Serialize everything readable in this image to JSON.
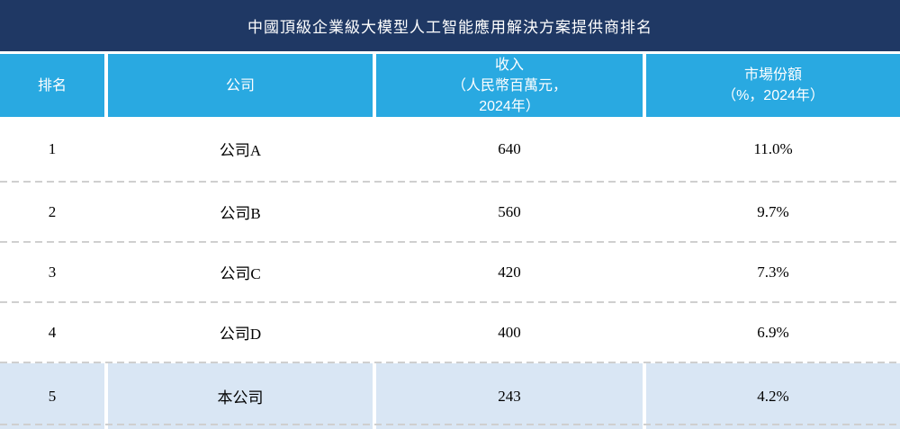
{
  "title_bar": {
    "text": "中國頂級企業級大模型人工智能應用解決方案提供商排名"
  },
  "table": {
    "columns": [
      {
        "id": "rank",
        "lines": [
          "排名"
        ]
      },
      {
        "id": "company",
        "lines": [
          "公司"
        ]
      },
      {
        "id": "revenue",
        "lines": [
          "收入",
          "（人民幣百萬元，",
          "2024年）"
        ]
      },
      {
        "id": "share",
        "lines": [
          "市場份額",
          "（%，2024年）"
        ]
      }
    ],
    "rows": [
      {
        "rank": "1",
        "company": "公司A",
        "revenue": "640",
        "share": "11.0%",
        "highlighted": false
      },
      {
        "rank": "2",
        "company": "公司B",
        "revenue": "560",
        "share": "9.7%",
        "highlighted": false
      },
      {
        "rank": "3",
        "company": "公司C",
        "revenue": "420",
        "share": "7.3%",
        "highlighted": false
      },
      {
        "rank": "4",
        "company": "公司D",
        "revenue": "400",
        "share": "6.9%",
        "highlighted": false
      },
      {
        "rank": "5",
        "company": "本公司",
        "revenue": "243",
        "share": "4.2%",
        "highlighted": true
      }
    ]
  },
  "colors": {
    "title_bar_bg": "#1F3864",
    "header_bg": "#29A9E1",
    "highlight_row_bg": "#D9E6F4",
    "divider": "#CFCFCF",
    "header_text": "#FFFFFF",
    "body_text": "#000000"
  }
}
